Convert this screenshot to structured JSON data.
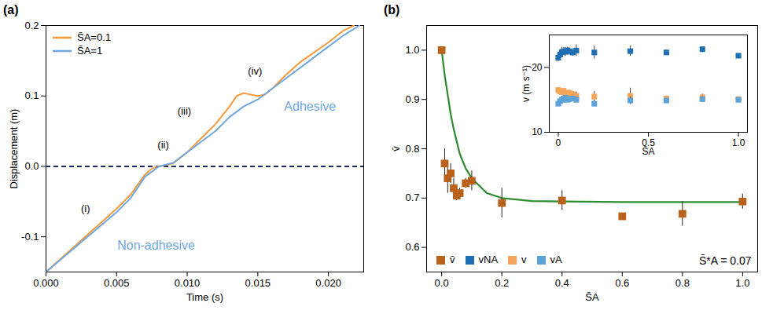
{
  "chart_data": [
    {
      "type": "line",
      "title": "(a)",
      "x_label": "Time (s)",
      "y_label": "Displacement (m)",
      "xlim": [
        0,
        0.0225
      ],
      "ylim": [
        -0.15,
        0.2
      ],
      "xticks": [
        {
          "value": 0,
          "label": "0.000"
        },
        {
          "value": 0.005,
          "label": "0.005"
        },
        {
          "value": 0.01,
          "label": "0.010"
        },
        {
          "value": 0.015,
          "label": "0.015"
        },
        {
          "value": 0.02,
          "label": "0.020"
        }
      ],
      "yticks": [
        -0.1,
        {
          "value": 0,
          "label": "0.0"
        },
        0.1,
        0.2
      ],
      "legend": "top-left",
      "grid": false,
      "series": [
        {
          "name": "S̄A=0.1",
          "color": "#f59a3c",
          "x": [
            0,
            0.001,
            0.002,
            0.003,
            0.004,
            0.005,
            0.006,
            0.007,
            0.0075,
            0.008,
            0.009,
            0.01,
            0.011,
            0.012,
            0.013,
            0.0135,
            0.014,
            0.0145,
            0.015,
            0.0155,
            0.016,
            0.017,
            0.018,
            0.019,
            0.02,
            0.021,
            0.0218
          ],
          "values": [
            -0.15,
            -0.132,
            -0.114,
            -0.096,
            -0.078,
            -0.06,
            -0.04,
            -0.012,
            -0.003,
            0.0,
            0.004,
            0.02,
            0.04,
            0.06,
            0.085,
            0.1,
            0.104,
            0.102,
            0.1,
            0.102,
            0.11,
            0.13,
            0.148,
            0.162,
            0.176,
            0.192,
            0.2
          ]
        },
        {
          "name": "S̄A=1",
          "color": "#6fa8dc",
          "x": [
            0,
            0.001,
            0.002,
            0.003,
            0.004,
            0.005,
            0.006,
            0.007,
            0.008,
            0.009,
            0.01,
            0.011,
            0.012,
            0.013,
            0.014,
            0.015,
            0.016,
            0.017,
            0.018,
            0.019,
            0.02,
            0.021,
            0.0222
          ],
          "values": [
            -0.15,
            -0.133,
            -0.116,
            -0.099,
            -0.082,
            -0.065,
            -0.045,
            -0.015,
            0.0,
            0.005,
            0.02,
            0.035,
            0.05,
            0.07,
            0.085,
            0.095,
            0.11,
            0.125,
            0.14,
            0.155,
            0.17,
            0.185,
            0.2
          ]
        }
      ],
      "reference_lines": [
        {
          "y": 0,
          "line_style": "dashed",
          "color": "#1f2a5c"
        }
      ],
      "annotations": [
        {
          "text": "(i)",
          "x": 0.0028,
          "y": -0.06,
          "color": "#000000"
        },
        {
          "text": "(ii)",
          "x": 0.0083,
          "y": 0.03,
          "color": "#000000"
        },
        {
          "text": "(iii)",
          "x": 0.0098,
          "y": 0.078,
          "color": "#000000"
        },
        {
          "text": "(iv)",
          "x": 0.0148,
          "y": 0.135,
          "color": "#000000"
        },
        {
          "text": "Non-adhesive",
          "x": 0.0078,
          "y": -0.112,
          "color": "#6fa8dc"
        },
        {
          "text": "Adhesive",
          "x": 0.0187,
          "y": 0.085,
          "color": "#6fa8dc"
        }
      ]
    },
    {
      "type": "scatter",
      "title": "(b)",
      "x_label": "S̄A",
      "y_label": "v̄",
      "xlim": [
        -0.05,
        1.05
      ],
      "ylim": [
        0.55,
        1.05
      ],
      "xticks": [
        {
          "value": 0,
          "label": "0.0"
        },
        0.2,
        0.4,
        0.6,
        0.8,
        {
          "value": 1,
          "label": "1.0"
        }
      ],
      "yticks": [
        0.6,
        0.7,
        0.8,
        0.9,
        {
          "value": 1,
          "label": "1.0"
        }
      ],
      "legend": "bottom-left",
      "grid": false,
      "marker": "square",
      "x": [
        0,
        0.01,
        0.02,
        0.03,
        0.04,
        0.05,
        0.06,
        0.08,
        0.1,
        0.2,
        0.4,
        0.6,
        0.8,
        1.0
      ],
      "series": [
        {
          "name": "v̄",
          "color": "#b8621b",
          "type": "scatter",
          "values": [
            1.0,
            0.77,
            0.74,
            0.75,
            0.72,
            0.705,
            0.71,
            0.73,
            0.735,
            0.69,
            0.695,
            0.663,
            0.668,
            0.693
          ],
          "errors": [
            0,
            0.03,
            0.03,
            0.02,
            0.02,
            0.01,
            0.01,
            0.01,
            0.02,
            0.03,
            0.02,
            0.005,
            0.025,
            0.015
          ]
        },
        {
          "name": "vNA",
          "color": "#1f6fb5",
          "type": "legend_only"
        },
        {
          "name": "v",
          "color": "#f5a65b",
          "type": "legend_only"
        },
        {
          "name": "vA",
          "color": "#5ba3d9",
          "type": "legend_only"
        },
        {
          "type": "line",
          "color": "#2e8b2e",
          "x": [
            0,
            0.01,
            0.02,
            0.03,
            0.04,
            0.06,
            0.08,
            0.1,
            0.15,
            0.2,
            0.3,
            0.4,
            0.6,
            0.8,
            1.0
          ],
          "values": [
            1.0,
            0.95,
            0.91,
            0.87,
            0.84,
            0.79,
            0.76,
            0.74,
            0.71,
            0.7,
            0.694,
            0.693,
            0.692,
            0.692,
            0.692
          ]
        }
      ],
      "annotations": [
        {
          "text": "S̄*A = 0.07"
        }
      ]
    },
    {
      "type": "scatter",
      "x_label": "S̄A",
      "y_label": "v (m s⁻¹)",
      "xlim": [
        -0.05,
        1.05
      ],
      "ylim": [
        10,
        25
      ],
      "xticks": [
        0,
        0.5,
        {
          "value": 1,
          "label": "1.0"
        }
      ],
      "yticks": [
        10,
        20
      ],
      "grid": false,
      "marker": "square",
      "x": [
        0,
        0.01,
        0.02,
        0.03,
        0.04,
        0.05,
        0.06,
        0.08,
        0.1,
        0.2,
        0.4,
        0.6,
        0.8,
        1.0
      ],
      "series": [
        {
          "name": "vNA",
          "color": "#1f6fb5",
          "values": [
            21.5,
            22.0,
            22.3,
            22.5,
            22.4,
            22.6,
            22.5,
            22.3,
            22.6,
            22.3,
            22.5,
            22.3,
            22.8,
            21.8
          ],
          "errors": [
            0.6,
            0.8,
            0.8,
            0.6,
            0.7,
            0.5,
            0.6,
            0.6,
            0.9,
            1.0,
            0.8,
            0.4,
            0.4,
            0.3
          ]
        },
        {
          "name": "v",
          "color": "#f5a65b",
          "values": [
            16.5,
            16.3,
            16.2,
            16.4,
            16.0,
            15.8,
            16.1,
            15.9,
            15.6,
            15.5,
            15.6,
            15.2,
            15.4,
            15.1
          ],
          "errors": [
            0.4,
            0.5,
            0.4,
            0.4,
            0.5,
            0.3,
            0.4,
            0.4,
            0.6,
            0.8,
            1.2,
            0.4,
            0.5,
            0.4
          ]
        },
        {
          "name": "vA",
          "color": "#5ba3d9",
          "values": [
            14.4,
            14.8,
            15.0,
            15.2,
            15.3,
            15.0,
            15.1,
            15.2,
            15.0,
            14.4,
            14.9,
            14.9,
            15.1,
            15.0
          ],
          "errors": [
            0.4,
            0.5,
            0.4,
            0.4,
            0.4,
            0.3,
            0.4,
            0.3,
            0.4,
            0.4,
            0.6,
            0.3,
            0.4,
            0.3
          ]
        }
      ]
    }
  ]
}
